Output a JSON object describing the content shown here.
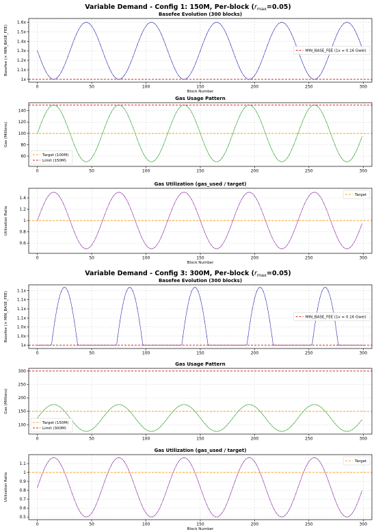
{
  "figures": [
    {
      "title_prefix": "Variable Demand - Config 1: 150M, Per-block (",
      "title_var": "r",
      "title_sub": "max",
      "title_suffix": "=0.05)"
    },
    {
      "title_prefix": "Variable Demand - Config 3: 300M, Per-block (",
      "title_var": "r",
      "title_sub": "max",
      "title_suffix": "=0.05)"
    }
  ],
  "chart_data": [
    {
      "type": "line",
      "title": "Basefee Evolution (300 blocks)",
      "xlabel": "Block Number",
      "ylabel": "Basefee (× MIN_BASE_FEE)",
      "xlim": [
        -8,
        308
      ],
      "ylim": [
        0.97,
        1.64
      ],
      "xticks": [
        0,
        50,
        100,
        150,
        200,
        250,
        300
      ],
      "yticks": [
        1.0,
        1.1,
        1.2,
        1.3,
        1.4,
        1.5,
        1.6
      ],
      "ytick_labels": [
        "1x",
        "1.1x",
        "1.2x",
        "1.3x",
        "1.4x",
        "1.5x",
        "1.6x"
      ],
      "grid": true,
      "legend_position": "center-right",
      "series": [
        {
          "kind": "wave",
          "amp": 0.3,
          "mid": 1.3,
          "period": 60,
          "phase": 30,
          "floor": 1.0,
          "x_end": 300,
          "color": "#2b2bb0",
          "marker": true
        },
        {
          "kind": "hline",
          "name": "MIN_BASE_FEE (1x = 0.16 Gwei)",
          "y": 1.0,
          "color": "#d62728",
          "dash": true
        }
      ]
    },
    {
      "type": "line",
      "title": "Gas Usage Pattern",
      "xlabel": "",
      "ylabel": "Gas (Millions)",
      "xlim": [
        -8,
        308
      ],
      "ylim": [
        42,
        154
      ],
      "xticks": [
        0,
        50,
        100,
        150,
        200,
        250,
        300
      ],
      "yticks": [
        60,
        80,
        100,
        120,
        140
      ],
      "grid": true,
      "legend_position": "lower-left",
      "series": [
        {
          "kind": "wave",
          "amp": 50,
          "mid": 100,
          "period": 60,
          "phase": 0,
          "x_end": 299,
          "color": "#2ca02c",
          "marker": true
        },
        {
          "kind": "hline",
          "name": "Target (100M)",
          "y": 100,
          "color": "#ff9f1c",
          "dash": true
        },
        {
          "kind": "hline",
          "name": "Limit (150M)",
          "y": 150,
          "color": "#d62728",
          "dash": true
        }
      ]
    },
    {
      "type": "line",
      "title": "Gas Utilization (gas_used / target)",
      "xlabel": "Block Number",
      "ylabel": "Utilization Ratio",
      "xlim": [
        -8,
        308
      ],
      "ylim": [
        0.42,
        1.57
      ],
      "xticks": [
        0,
        50,
        100,
        150,
        200,
        250,
        300
      ],
      "yticks": [
        0.6,
        0.8,
        1.0,
        1.2,
        1.4
      ],
      "grid": true,
      "legend_position": "upper-right",
      "series": [
        {
          "kind": "wave",
          "amp": 0.5,
          "mid": 1.0,
          "period": 60,
          "phase": 0,
          "x_end": 299,
          "color": "#8e2ca6",
          "marker": true
        },
        {
          "kind": "hline",
          "name": "Target",
          "y": 1.0,
          "color": "#ff9f1c",
          "dash": true
        }
      ]
    },
    {
      "type": "line",
      "title": "Basefee Evolution (300 blocks)",
      "xlabel": "",
      "ylabel": "Basefee (× MIN_BASE_FEE)",
      "xlim": [
        -8,
        308
      ],
      "ylim": [
        0.992,
        1.146
      ],
      "xticks": [
        0,
        50,
        100,
        150,
        200,
        250,
        300
      ],
      "yticks": [
        1.0,
        1.022,
        1.044,
        1.066,
        1.088,
        1.11,
        1.132
      ],
      "ytick_labels": [
        "1x",
        "1.0x",
        "1.0x",
        "1.1x",
        "1.1x",
        "1.1x",
        "1.1x"
      ],
      "grid": true,
      "legend_position": "center-right",
      "series": [
        {
          "kind": "wave",
          "amp": 0.2,
          "mid": 0.94,
          "period": 60,
          "phase": 10,
          "floor": 1.0,
          "x_end": 300,
          "color": "#2b2bb0",
          "marker": true
        },
        {
          "kind": "hline",
          "name": "MIN_BASE_FEE (1x = 0.16 Gwei)",
          "y": 1.0,
          "color": "#d62728",
          "dash": true
        }
      ]
    },
    {
      "type": "line",
      "title": "Gas Usage Pattern",
      "xlabel": "",
      "ylabel": "Gas (Millions)",
      "xlim": [
        -8,
        308
      ],
      "ylim": [
        65,
        310
      ],
      "xticks": [
        0,
        50,
        100,
        150,
        200,
        250,
        300
      ],
      "yticks": [
        100,
        150,
        200,
        250,
        300
      ],
      "grid": true,
      "legend_position": "lower-left",
      "series": [
        {
          "kind": "wave",
          "amp": 50,
          "mid": 125,
          "period": 60,
          "phase": 0,
          "x_end": 299,
          "color": "#2ca02c",
          "marker": true
        },
        {
          "kind": "hline",
          "name": "Target (150M)",
          "y": 150,
          "color": "#ff9f1c",
          "dash": true
        },
        {
          "kind": "hline",
          "name": "Limit (300M)",
          "y": 300,
          "color": "#d62728",
          "dash": true
        }
      ]
    },
    {
      "type": "line",
      "title": "Gas Utilization (gas_used / target)",
      "xlabel": "Block Number",
      "ylabel": "Utilization Ratio",
      "xlim": [
        -8,
        308
      ],
      "ylim": [
        0.47,
        1.2
      ],
      "xticks": [
        0,
        50,
        100,
        150,
        200,
        250,
        300
      ],
      "yticks": [
        0.5,
        0.6,
        0.7,
        0.8,
        0.9,
        1.0,
        1.1
      ],
      "grid": true,
      "legend_position": "upper-right",
      "series": [
        {
          "kind": "wave",
          "amp": 0.333,
          "mid": 0.833,
          "period": 60,
          "phase": 0,
          "x_end": 299,
          "color": "#8e2ca6",
          "marker": true
        },
        {
          "kind": "hline",
          "name": "Target",
          "y": 1.0,
          "color": "#ff9f1c",
          "dash": true
        }
      ]
    }
  ]
}
